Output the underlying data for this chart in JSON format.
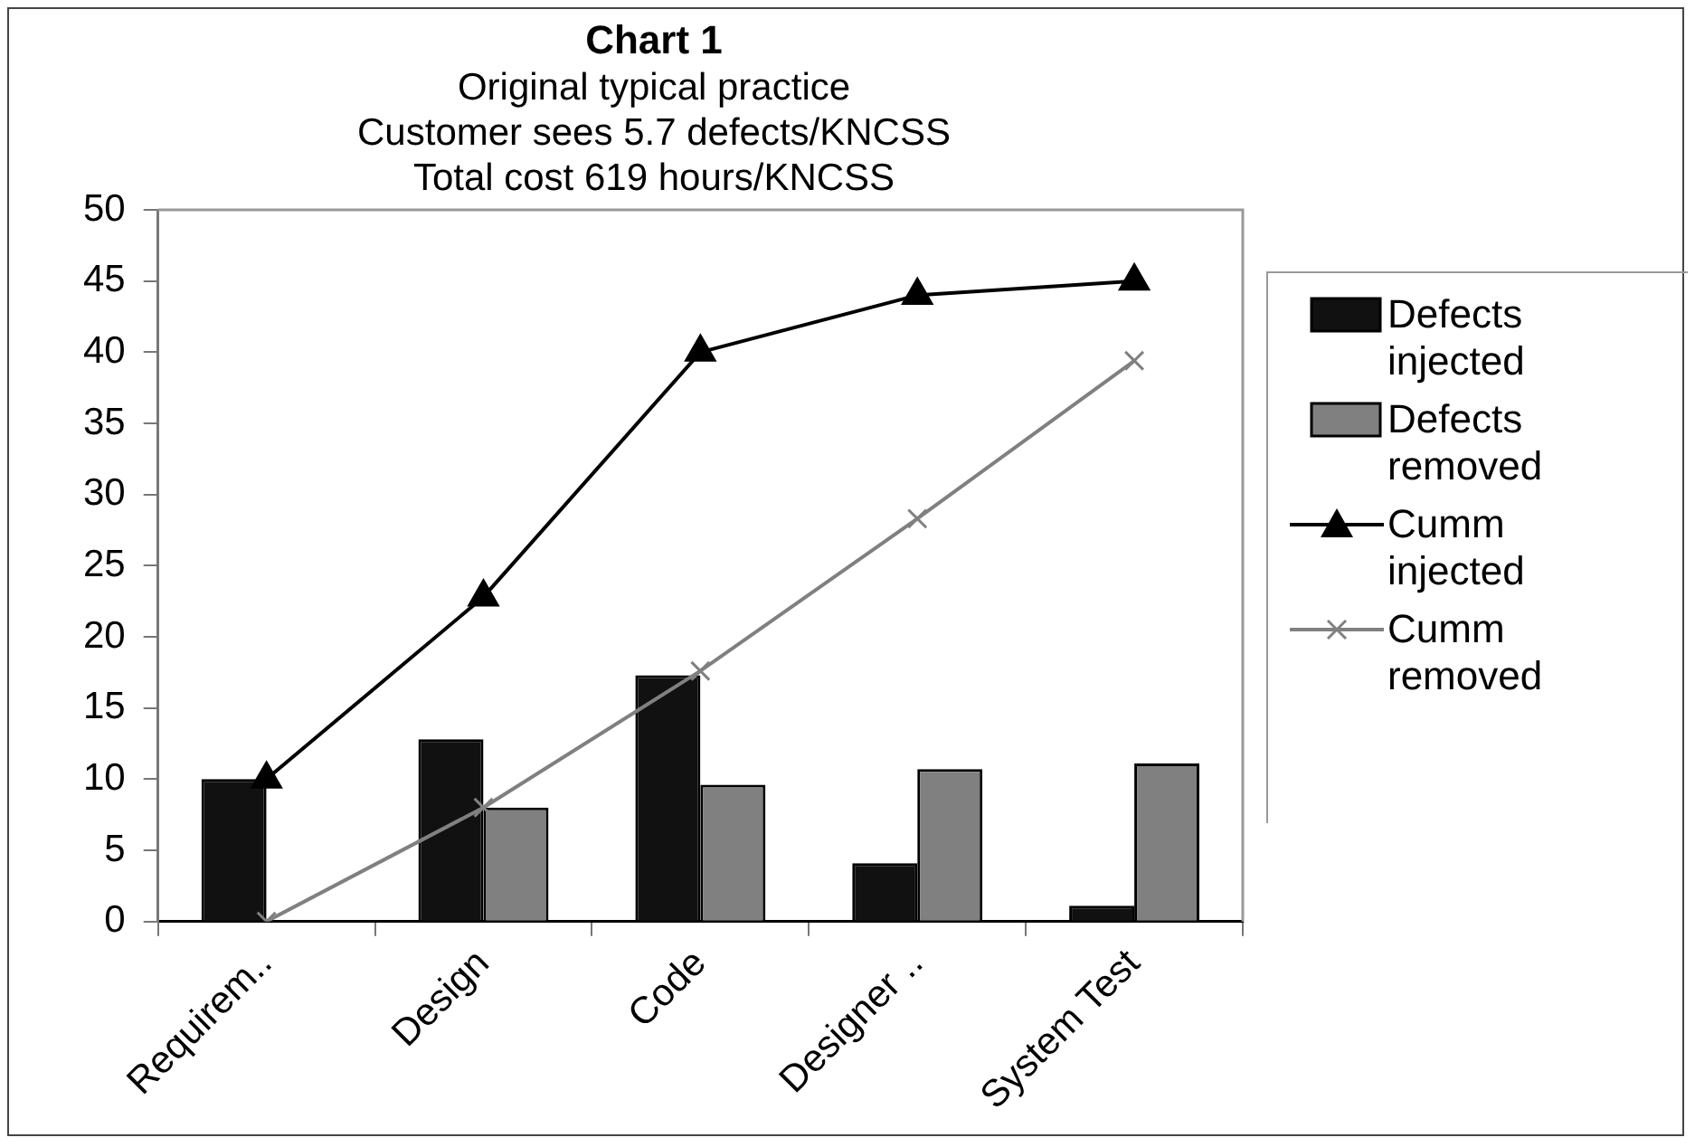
{
  "chart_data": {
    "type": "bar",
    "title": "Chart 1",
    "subtitle": "Original typical practice\nCustomer sees 5.7 defects/KNCSS\nTotal cost 619 hours/KNCSS",
    "categories": [
      "Requirem..",
      "Design",
      "Code",
      "Designer ..",
      "System Test"
    ],
    "series": [
      {
        "name": "Defects injected",
        "color": "#111111",
        "values": [
          10,
          12.8,
          17.3,
          4.1,
          1.1
        ]
      },
      {
        "name": "Defects removed",
        "color": "#808080",
        "values": [
          0,
          8,
          9.6,
          10.7,
          11.1
        ]
      },
      {
        "name": "Cumm injected",
        "type": "line",
        "color": "#000000",
        "marker": "triangle",
        "values": [
          10,
          22.8,
          40,
          44,
          45
        ]
      },
      {
        "name": "Cumm removed",
        "type": "line",
        "color": "#808080",
        "marker": "cross",
        "values": [
          0,
          8,
          17.6,
          28.3,
          39.4
        ]
      }
    ],
    "ylim": [
      0,
      50
    ],
    "yticks": [
      0,
      5,
      10,
      15,
      20,
      25,
      30,
      35,
      40,
      45,
      50
    ],
    "grid": false,
    "legend": "right",
    "line_style": "solid"
  }
}
